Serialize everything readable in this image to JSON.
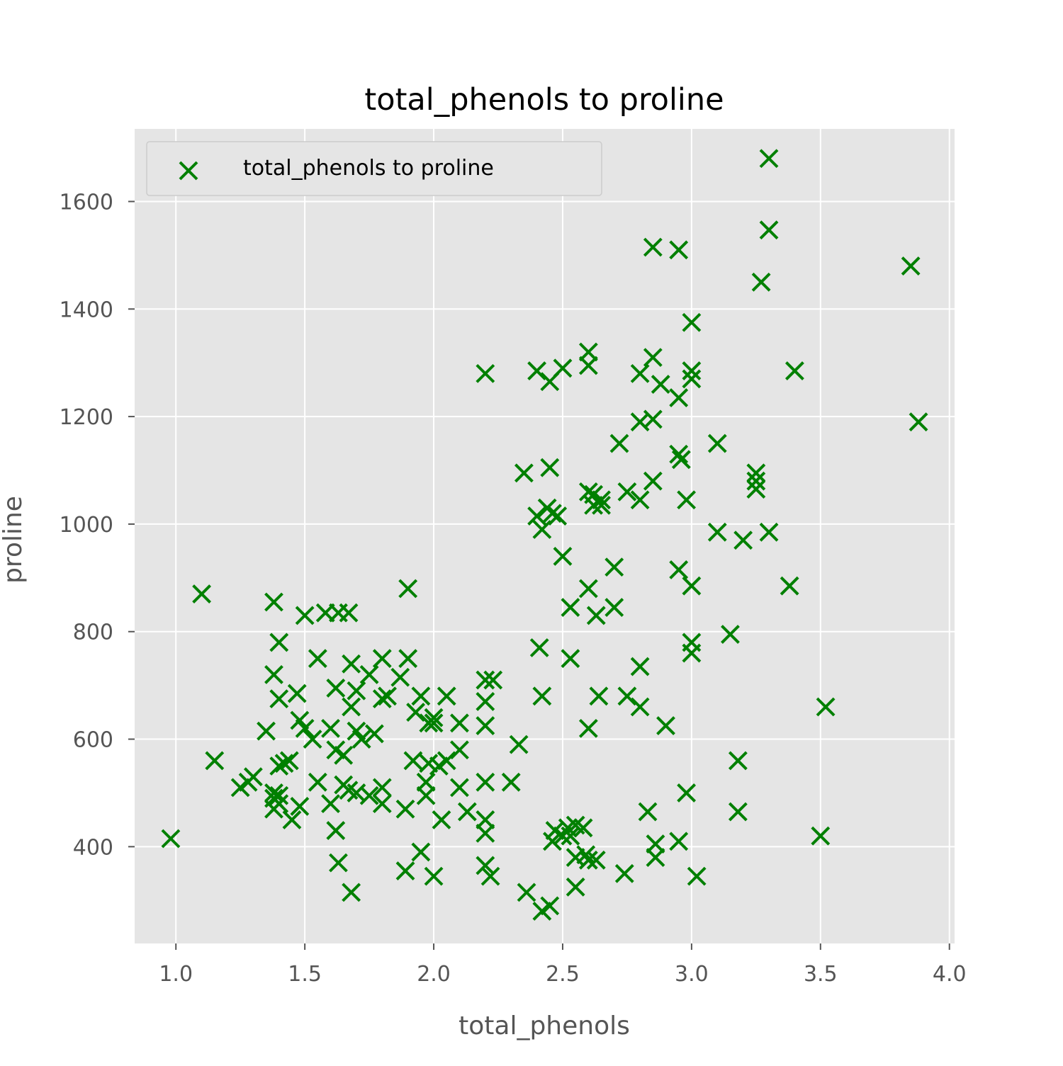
{
  "chart_data": {
    "type": "scatter",
    "title": "total_phenols to proline",
    "xlabel": "total_phenols",
    "ylabel": "proline",
    "xlim": [
      0.84,
      4.02
    ],
    "ylim": [
      220,
      1735
    ],
    "xticks": [
      1.0,
      1.5,
      2.0,
      2.5,
      3.0,
      3.5,
      4.0
    ],
    "xtick_labels": [
      "1.0",
      "1.5",
      "2.0",
      "2.5",
      "3.0",
      "3.5",
      "4.0"
    ],
    "yticks": [
      400,
      600,
      800,
      1000,
      1200,
      1400,
      1600
    ],
    "ytick_labels": [
      "400",
      "600",
      "800",
      "1000",
      "1200",
      "1400",
      "1600"
    ],
    "grid": true,
    "legend_position": "top-left",
    "marker": "x",
    "colors": {
      "series": "#008000",
      "plot_background": "#e5e5e5",
      "grid": "#ffffff"
    },
    "series": [
      {
        "name": "total_phenols to proline",
        "points": [
          [
            0.98,
            415
          ],
          [
            1.1,
            870
          ],
          [
            1.15,
            560
          ],
          [
            1.25,
            510
          ],
          [
            1.28,
            520
          ],
          [
            1.3,
            530
          ],
          [
            1.35,
            615
          ],
          [
            1.38,
            855
          ],
          [
            1.38,
            720
          ],
          [
            1.38,
            500
          ],
          [
            1.38,
            490
          ],
          [
            1.38,
            470
          ],
          [
            1.4,
            780
          ],
          [
            1.4,
            675
          ],
          [
            1.4,
            550
          ],
          [
            1.4,
            495
          ],
          [
            1.4,
            480
          ],
          [
            1.42,
            555
          ],
          [
            1.44,
            560
          ],
          [
            1.45,
            450
          ],
          [
            1.47,
            685
          ],
          [
            1.48,
            635
          ],
          [
            1.48,
            475
          ],
          [
            1.5,
            830
          ],
          [
            1.5,
            620
          ],
          [
            1.53,
            600
          ],
          [
            1.55,
            750
          ],
          [
            1.55,
            520
          ],
          [
            1.58,
            835
          ],
          [
            1.6,
            620
          ],
          [
            1.6,
            480
          ],
          [
            1.62,
            695
          ],
          [
            1.62,
            580
          ],
          [
            1.62,
            430
          ],
          [
            1.63,
            835
          ],
          [
            1.63,
            370
          ],
          [
            1.65,
            570
          ],
          [
            1.65,
            515
          ],
          [
            1.67,
            835
          ],
          [
            1.67,
            505
          ],
          [
            1.68,
            740
          ],
          [
            1.68,
            660
          ],
          [
            1.68,
            315
          ],
          [
            1.7,
            690
          ],
          [
            1.7,
            615
          ],
          [
            1.7,
            500
          ],
          [
            1.72,
            600
          ],
          [
            1.75,
            720
          ],
          [
            1.75,
            495
          ],
          [
            1.77,
            610
          ],
          [
            1.8,
            750
          ],
          [
            1.8,
            675
          ],
          [
            1.8,
            510
          ],
          [
            1.8,
            480
          ],
          [
            1.82,
            680
          ],
          [
            1.87,
            715
          ],
          [
            1.89,
            470
          ],
          [
            1.89,
            355
          ],
          [
            1.9,
            880
          ],
          [
            1.9,
            750
          ],
          [
            1.92,
            560
          ],
          [
            1.93,
            650
          ],
          [
            1.95,
            680
          ],
          [
            1.95,
            390
          ],
          [
            1.97,
            520
          ],
          [
            1.97,
            495
          ],
          [
            1.98,
            630
          ],
          [
            1.98,
            555
          ],
          [
            2.0,
            640
          ],
          [
            2.0,
            630
          ],
          [
            2.0,
            345
          ],
          [
            2.02,
            550
          ],
          [
            2.03,
            450
          ],
          [
            2.05,
            680
          ],
          [
            2.05,
            560
          ],
          [
            2.1,
            630
          ],
          [
            2.1,
            580
          ],
          [
            2.1,
            510
          ],
          [
            2.13,
            465
          ],
          [
            2.2,
            1280
          ],
          [
            2.2,
            710
          ],
          [
            2.2,
            670
          ],
          [
            2.2,
            625
          ],
          [
            2.2,
            520
          ],
          [
            2.2,
            450
          ],
          [
            2.2,
            425
          ],
          [
            2.2,
            365
          ],
          [
            2.22,
            345
          ],
          [
            2.23,
            710
          ],
          [
            2.3,
            520
          ],
          [
            2.33,
            590
          ],
          [
            2.35,
            1095
          ],
          [
            2.36,
            315
          ],
          [
            2.4,
            1285
          ],
          [
            2.4,
            1015
          ],
          [
            2.41,
            770
          ],
          [
            2.42,
            990
          ],
          [
            2.42,
            680
          ],
          [
            2.42,
            280
          ],
          [
            2.44,
            1030
          ],
          [
            2.45,
            1105
          ],
          [
            2.45,
            1265
          ],
          [
            2.45,
            290
          ],
          [
            2.46,
            1020
          ],
          [
            2.46,
            410
          ],
          [
            2.47,
            430
          ],
          [
            2.48,
            1015
          ],
          [
            2.5,
            1290
          ],
          [
            2.5,
            940
          ],
          [
            2.5,
            420
          ],
          [
            2.52,
            435
          ],
          [
            2.53,
            845
          ],
          [
            2.53,
            750
          ],
          [
            2.53,
            420
          ],
          [
            2.55,
            440
          ],
          [
            2.55,
            380
          ],
          [
            2.55,
            325
          ],
          [
            2.58,
            435
          ],
          [
            2.59,
            385
          ],
          [
            2.6,
            1320
          ],
          [
            2.6,
            1295
          ],
          [
            2.6,
            1060
          ],
          [
            2.6,
            880
          ],
          [
            2.6,
            620
          ],
          [
            2.6,
            375
          ],
          [
            2.62,
            1035
          ],
          [
            2.62,
            1055
          ],
          [
            2.63,
            830
          ],
          [
            2.63,
            375
          ],
          [
            2.64,
            680
          ],
          [
            2.65,
            1035
          ],
          [
            2.65,
            1045
          ],
          [
            2.7,
            920
          ],
          [
            2.7,
            845
          ],
          [
            2.72,
            1150
          ],
          [
            2.74,
            350
          ],
          [
            2.75,
            680
          ],
          [
            2.75,
            1060
          ],
          [
            2.8,
            1280
          ],
          [
            2.8,
            1190
          ],
          [
            2.8,
            1045
          ],
          [
            2.8,
            735
          ],
          [
            2.8,
            660
          ],
          [
            2.83,
            465
          ],
          [
            2.85,
            1515
          ],
          [
            2.85,
            1310
          ],
          [
            2.85,
            1195
          ],
          [
            2.85,
            1080
          ],
          [
            2.86,
            380
          ],
          [
            2.86,
            405
          ],
          [
            2.88,
            1260
          ],
          [
            2.9,
            625
          ],
          [
            2.95,
            1510
          ],
          [
            2.95,
            1235
          ],
          [
            2.95,
            1130
          ],
          [
            2.95,
            915
          ],
          [
            2.95,
            410
          ],
          [
            2.96,
            1120
          ],
          [
            2.98,
            1045
          ],
          [
            2.98,
            500
          ],
          [
            3.0,
            1375
          ],
          [
            3.0,
            1285
          ],
          [
            3.0,
            1270
          ],
          [
            3.0,
            885
          ],
          [
            3.0,
            780
          ],
          [
            3.0,
            760
          ],
          [
            3.02,
            345
          ],
          [
            3.1,
            1150
          ],
          [
            3.1,
            985
          ],
          [
            3.15,
            795
          ],
          [
            3.18,
            560
          ],
          [
            3.18,
            465
          ],
          [
            3.2,
            970
          ],
          [
            3.25,
            1095
          ],
          [
            3.25,
            1080
          ],
          [
            3.25,
            1065
          ],
          [
            3.27,
            1450
          ],
          [
            3.3,
            1680
          ],
          [
            3.3,
            1547
          ],
          [
            3.3,
            985
          ],
          [
            3.38,
            885
          ],
          [
            3.4,
            1285
          ],
          [
            3.5,
            420
          ],
          [
            3.52,
            660
          ],
          [
            3.85,
            1480
          ],
          [
            3.88,
            1190
          ]
        ]
      }
    ]
  }
}
